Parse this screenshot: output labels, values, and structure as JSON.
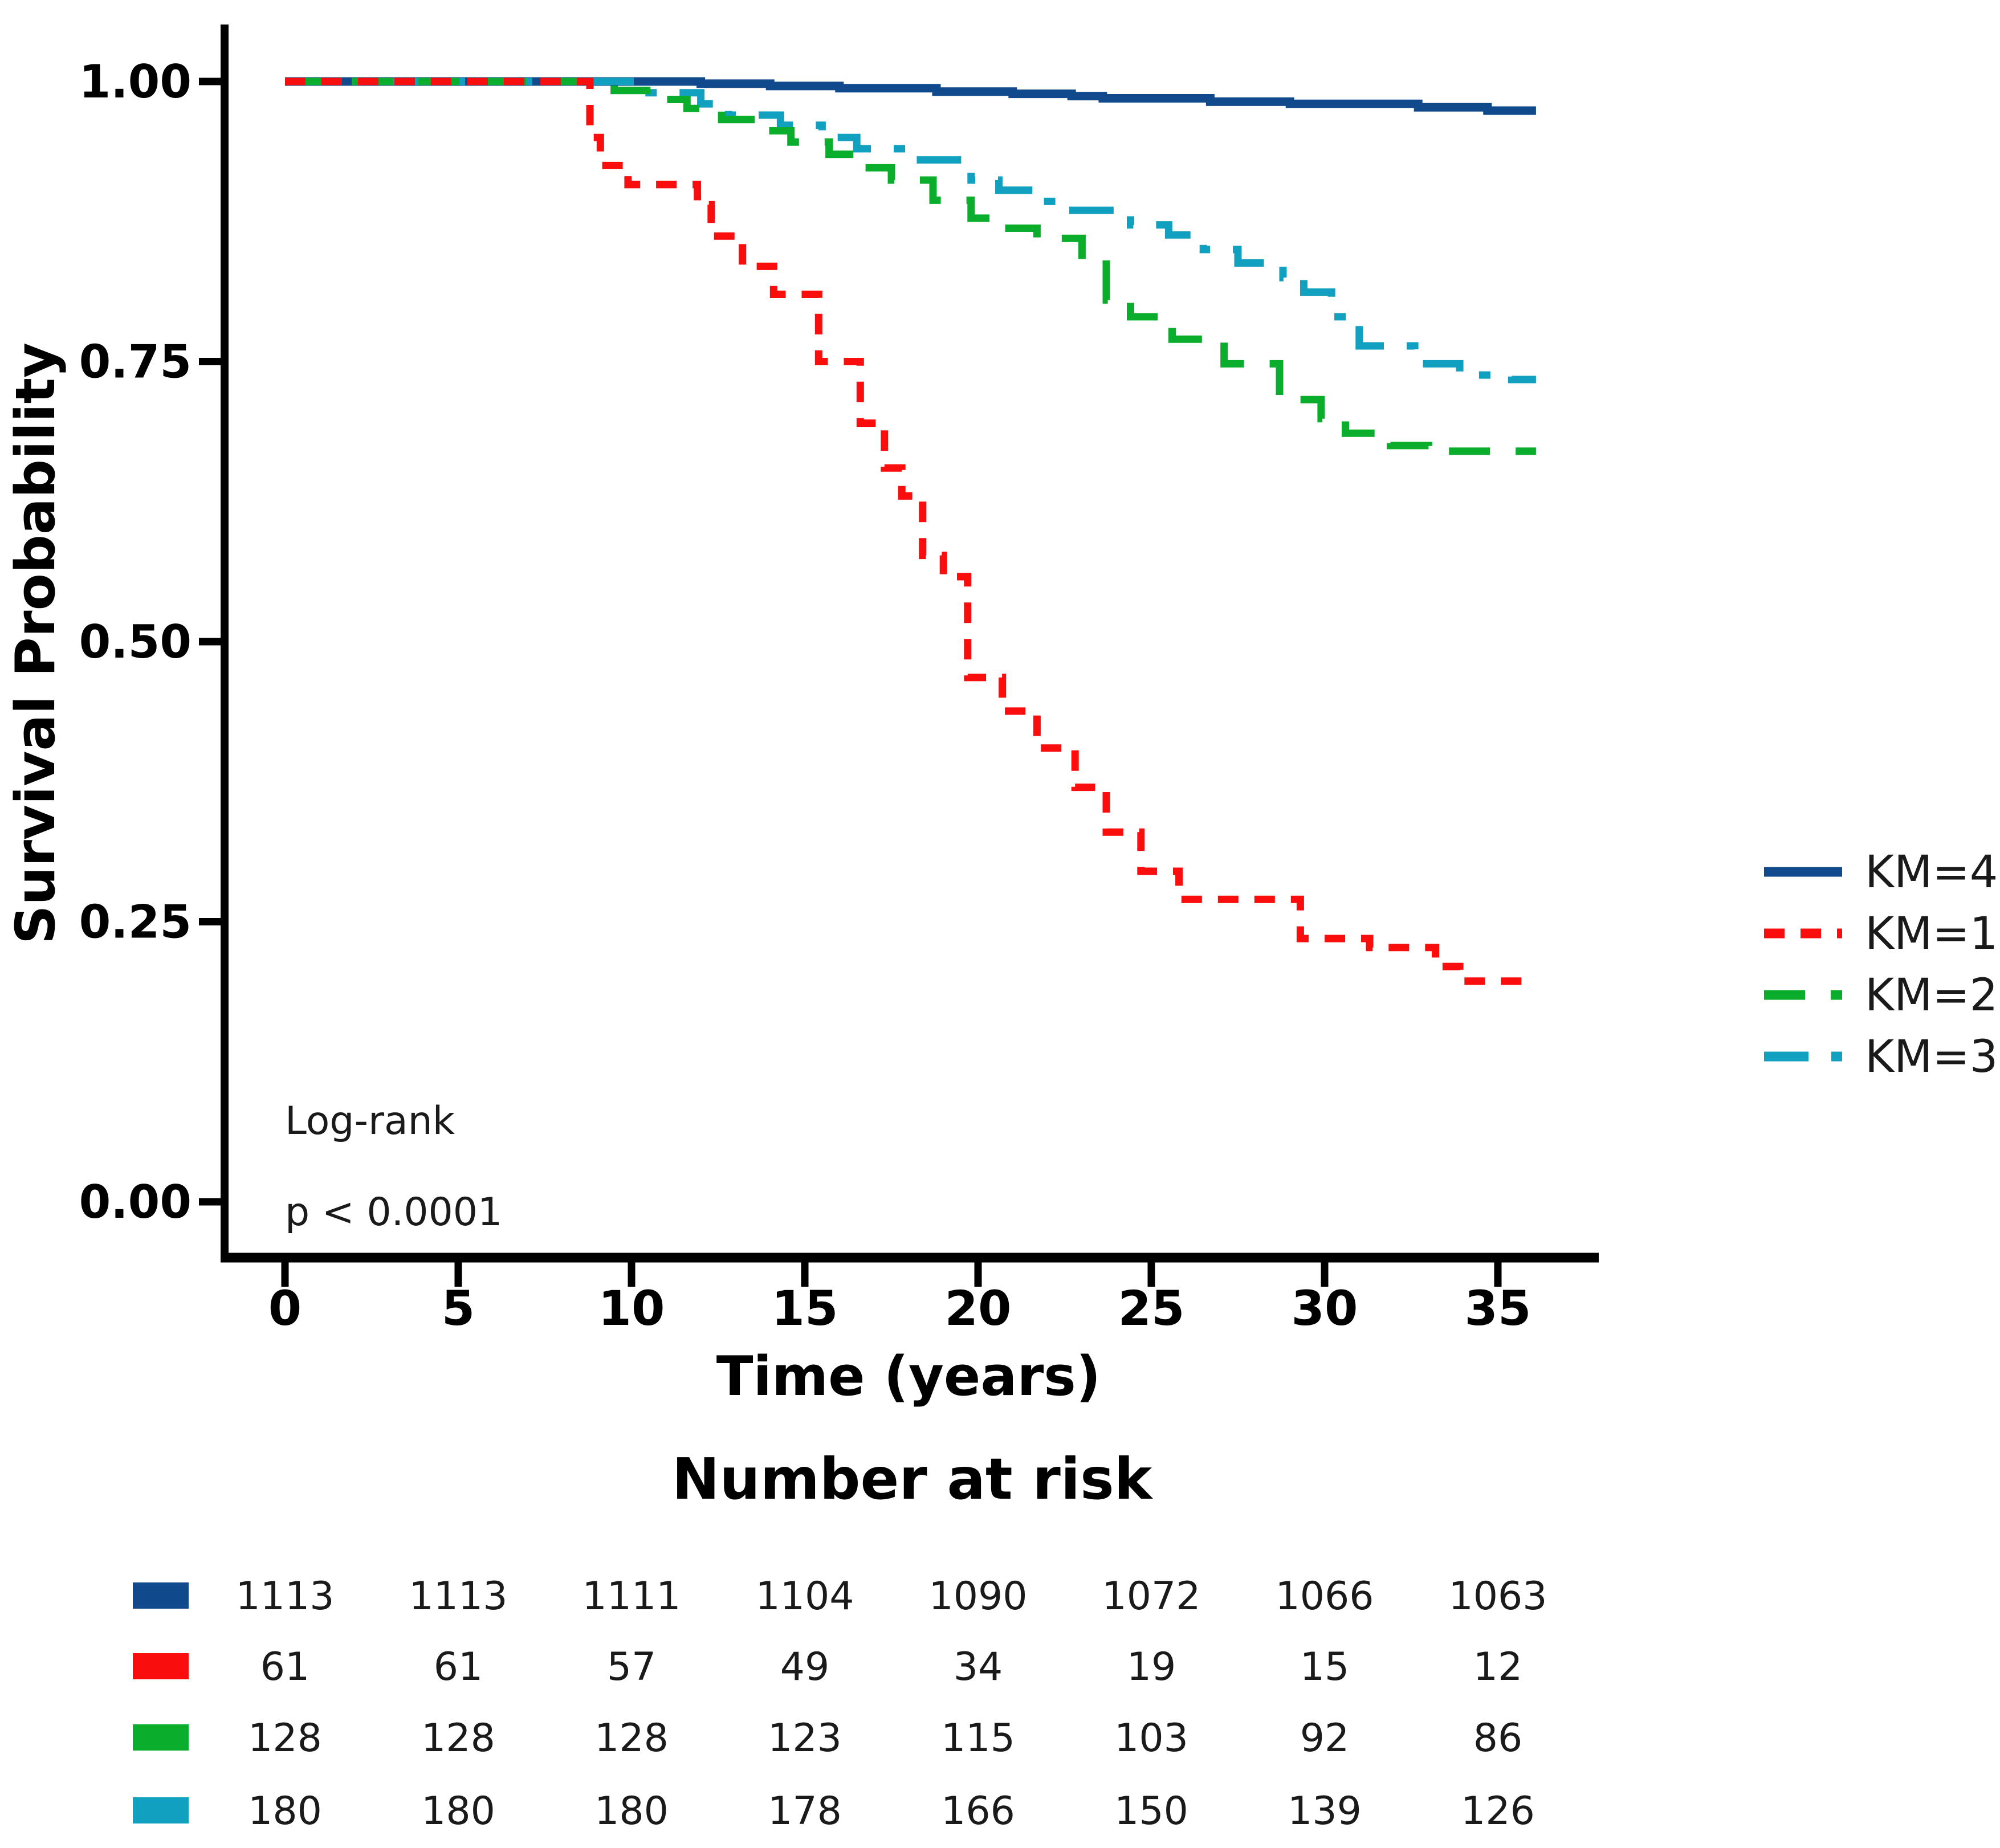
{
  "figure": {
    "y_axis": {
      "label": "Survival Probability",
      "tick_labels": [
        "1.00",
        "0.75",
        "0.50",
        "0.25",
        "0.00"
      ],
      "tick_values": [
        1.0,
        0.75,
        0.5,
        0.25,
        0.0
      ]
    },
    "x_axis": {
      "label": "Time (years)",
      "tick_labels": [
        "0",
        "5",
        "10",
        "15",
        "20",
        "25",
        "30",
        "35"
      ],
      "tick_values": [
        0,
        5,
        10,
        15,
        20,
        25,
        30,
        35
      ]
    },
    "annotations": {
      "log_rank": "Log-rank",
      "p_value": "p < 0.0001"
    }
  },
  "colors": {
    "km4_blue": "#10498C",
    "km1_red": "#F90D0D",
    "km2_green": "#0BAE2C",
    "km3_teal": "#12A0C1",
    "axis_black": "#000000",
    "text_dark": "#1a1a1a"
  },
  "legend": {
    "entries": [
      {
        "label": "KM=4",
        "color": "#10498C",
        "line_style": "solid"
      },
      {
        "label": "KM=1",
        "color": "#F90D0D",
        "line_style": "dash_short"
      },
      {
        "label": "KM=2",
        "color": "#0BAE2C",
        "line_style": "dash_long"
      },
      {
        "label": "KM=3",
        "color": "#12A0C1",
        "line_style": "dash_dot"
      }
    ]
  },
  "risk_table": {
    "title": "Number at risk",
    "time_points": [
      0,
      5,
      10,
      15,
      20,
      25,
      30,
      35
    ],
    "rows": [
      {
        "group": "KM=4",
        "color": "#10498C",
        "values": [
          1113,
          1113,
          1111,
          1104,
          1090,
          1072,
          1066,
          1063
        ]
      },
      {
        "group": "KM=1",
        "color": "#F90D0D",
        "values": [
          61,
          61,
          57,
          49,
          34,
          19,
          15,
          12
        ]
      },
      {
        "group": "KM=2",
        "color": "#0BAE2C",
        "values": [
          128,
          128,
          128,
          123,
          115,
          103,
          92,
          86
        ]
      },
      {
        "group": "KM=3",
        "color": "#12A0C1",
        "values": [
          180,
          180,
          180,
          178,
          166,
          150,
          139,
          126
        ]
      }
    ]
  },
  "chart_data": {
    "type": "line",
    "subtype": "kaplan_meier_step",
    "title": "",
    "xlabel": "Time (years)",
    "ylabel": "Survival Probability",
    "xlim": [
      0,
      37.5
    ],
    "ylim": [
      0.0,
      1.0
    ],
    "x_ticks": [
      0,
      5,
      10,
      15,
      20,
      25,
      30,
      35
    ],
    "y_ticks": [
      0.0,
      0.25,
      0.5,
      0.75,
      1.0
    ],
    "grid": false,
    "legend_position": "right",
    "log_rank_p": "p < 0.0001",
    "series": [
      {
        "name": "KM=4",
        "color": "#10498C",
        "line_style": "solid",
        "start": [
          0,
          1.0
        ],
        "end_time": 36.1,
        "steps": [
          [
            12,
            0.998
          ],
          [
            14,
            0.996
          ],
          [
            16,
            0.994
          ],
          [
            18.8,
            0.991
          ],
          [
            21,
            0.989
          ],
          [
            22.7,
            0.987
          ],
          [
            23.6,
            0.985
          ],
          [
            26.7,
            0.982
          ],
          [
            29,
            0.98
          ],
          [
            32.7,
            0.977
          ],
          [
            34.7,
            0.974
          ]
        ]
      },
      {
        "name": "KM=1",
        "color": "#F90D0D",
        "line_style": "dash_short",
        "start": [
          0,
          1.0
        ],
        "end_time": 36.0,
        "steps": [
          [
            8.8,
            0.95
          ],
          [
            9.1,
            0.925
          ],
          [
            9.9,
            0.908
          ],
          [
            11.9,
            0.89
          ],
          [
            12.3,
            0.862
          ],
          [
            13.2,
            0.835
          ],
          [
            14.1,
            0.81
          ],
          [
            15.4,
            0.75
          ],
          [
            16.6,
            0.695
          ],
          [
            17.3,
            0.655
          ],
          [
            17.8,
            0.63
          ],
          [
            18.4,
            0.577
          ],
          [
            19.0,
            0.558
          ],
          [
            19.7,
            0.468
          ],
          [
            20.7,
            0.438
          ],
          [
            21.7,
            0.405
          ],
          [
            22.8,
            0.37
          ],
          [
            23.7,
            0.33
          ],
          [
            24.7,
            0.295
          ],
          [
            25.8,
            0.27
          ],
          [
            29.3,
            0.235
          ],
          [
            31.3,
            0.227
          ],
          [
            33.2,
            0.21
          ],
          [
            33.9,
            0.197
          ]
        ]
      },
      {
        "name": "KM=2",
        "color": "#0BAE2C",
        "line_style": "dash_long",
        "start": [
          0,
          1.0
        ],
        "end_time": 36.1,
        "steps": [
          [
            9.5,
            0.992
          ],
          [
            10.6,
            0.984
          ],
          [
            11.6,
            0.976
          ],
          [
            12.6,
            0.966
          ],
          [
            13.6,
            0.956
          ],
          [
            14.6,
            0.946
          ],
          [
            15.7,
            0.935
          ],
          [
            16.6,
            0.923
          ],
          [
            17.5,
            0.912
          ],
          [
            18.7,
            0.894
          ],
          [
            19.8,
            0.878
          ],
          [
            20.7,
            0.869
          ],
          [
            21.7,
            0.86
          ],
          [
            23.0,
            0.837
          ],
          [
            23.7,
            0.805
          ],
          [
            24.4,
            0.79
          ],
          [
            25.6,
            0.77
          ],
          [
            27.1,
            0.748
          ],
          [
            28.7,
            0.716
          ],
          [
            29.9,
            0.699
          ],
          [
            30.6,
            0.686
          ],
          [
            31.9,
            0.675
          ],
          [
            33.0,
            0.67
          ]
        ]
      },
      {
        "name": "KM=3",
        "color": "#12A0C1",
        "line_style": "dash_dot",
        "start": [
          0,
          1.0
        ],
        "end_time": 36.1,
        "steps": [
          [
            10.2,
            0.99
          ],
          [
            12.0,
            0.98
          ],
          [
            12.8,
            0.97
          ],
          [
            14.3,
            0.961
          ],
          [
            15.5,
            0.95
          ],
          [
            16.5,
            0.94
          ],
          [
            18.0,
            0.93
          ],
          [
            19.8,
            0.912
          ],
          [
            20.6,
            0.903
          ],
          [
            21.8,
            0.893
          ],
          [
            22.6,
            0.885
          ],
          [
            24.4,
            0.872
          ],
          [
            25.5,
            0.863
          ],
          [
            26.5,
            0.85
          ],
          [
            27.5,
            0.838
          ],
          [
            28.8,
            0.825
          ],
          [
            29.4,
            0.812
          ],
          [
            30.2,
            0.79
          ],
          [
            31.0,
            0.764
          ],
          [
            32.6,
            0.748
          ],
          [
            33.9,
            0.738
          ],
          [
            35.4,
            0.734
          ]
        ]
      }
    ],
    "number_at_risk": {
      "time_points": [
        0,
        5,
        10,
        15,
        20,
        25,
        30,
        35
      ],
      "KM=4": [
        1113,
        1113,
        1111,
        1104,
        1090,
        1072,
        1066,
        1063
      ],
      "KM=1": [
        61,
        61,
        57,
        49,
        34,
        19,
        15,
        12
      ],
      "KM=2": [
        128,
        128,
        128,
        123,
        115,
        103,
        92,
        86
      ],
      "KM=3": [
        180,
        180,
        180,
        178,
        166,
        150,
        139,
        126
      ]
    }
  }
}
